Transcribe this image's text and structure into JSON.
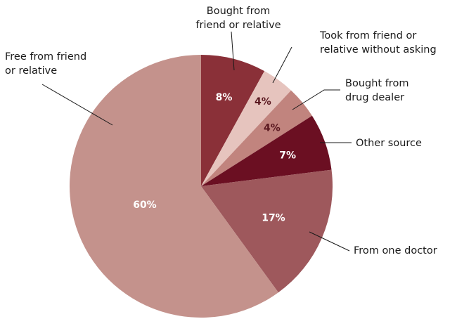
{
  "chart_data": {
    "type": "pie",
    "title": "",
    "start_angle_deg": 0,
    "direction": "clockwise",
    "slices": [
      {
        "label": [
          "Bought from",
          "friend or relative"
        ],
        "value": 8,
        "value_label": "8%",
        "color": "#8a3038"
      },
      {
        "label": [
          "Took from friend or",
          "relative without asking"
        ],
        "value": 4,
        "value_label": "4%",
        "color": "#e6c4be"
      },
      {
        "label": [
          "Bought from",
          "drug dealer"
        ],
        "value": 4,
        "value_label": "4%",
        "color": "#c1847e"
      },
      {
        "label": [
          "Other source"
        ],
        "value": 7,
        "value_label": "7%",
        "color": "#6b0f22"
      },
      {
        "label": [
          "From one doctor"
        ],
        "value": 17,
        "value_label": "17%",
        "color": "#9e585c"
      },
      {
        "label": [
          "Free from friend",
          "or relative"
        ],
        "value": 60,
        "value_label": "60%",
        "color": "#c4928c"
      }
    ]
  }
}
